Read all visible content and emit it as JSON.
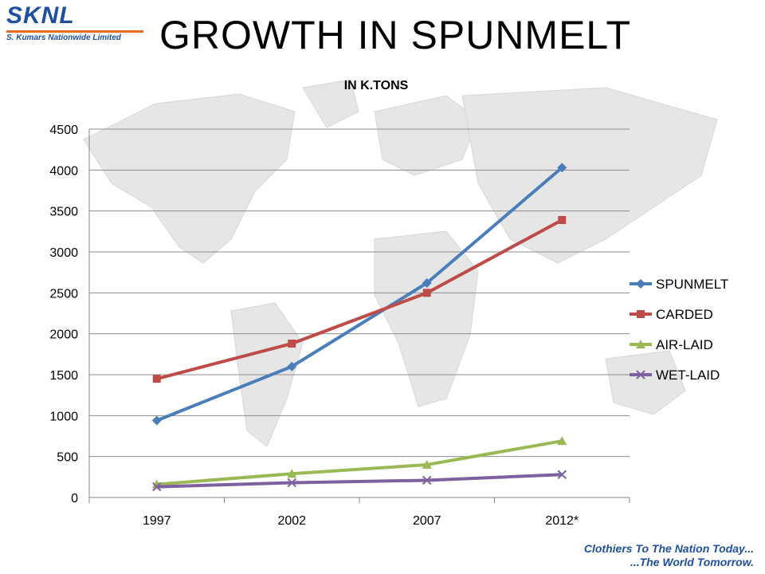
{
  "logo": {
    "brand": "SKNL",
    "company": "S. Kumars Nationwide Limited"
  },
  "slide_title": "GROWTH IN SPUNMELT",
  "tagline": {
    "line1": "Clothiers To The Nation Today...",
    "line2": "...The World Tomorrow."
  },
  "colors": {
    "brand_blue": "#1f4fa0",
    "brand_orange": "#e86b1f"
  },
  "chart_data": {
    "type": "line",
    "title": "IN K.TONS",
    "categories": [
      "1997",
      "2002",
      "2007",
      "2012*"
    ],
    "ylim": [
      0,
      4500
    ],
    "yticks": [
      0,
      500,
      1000,
      1500,
      2000,
      2500,
      3000,
      3500,
      4000,
      4500
    ],
    "grid": true,
    "legend_position": "right",
    "series": [
      {
        "name": "SPUNMELT",
        "values": [
          940,
          1600,
          2620,
          4030
        ],
        "color": "#4a7ebb",
        "marker": "diamond"
      },
      {
        "name": "CARDED",
        "values": [
          1450,
          1880,
          2500,
          3390
        ],
        "color": "#be4b48",
        "marker": "square"
      },
      {
        "name": "AIR-LAID",
        "values": [
          160,
          290,
          400,
          690
        ],
        "color": "#98b954",
        "marker": "triangle"
      },
      {
        "name": "WET-LAID",
        "values": [
          130,
          180,
          210,
          280
        ],
        "color": "#7d60a0",
        "marker": "x"
      }
    ]
  }
}
